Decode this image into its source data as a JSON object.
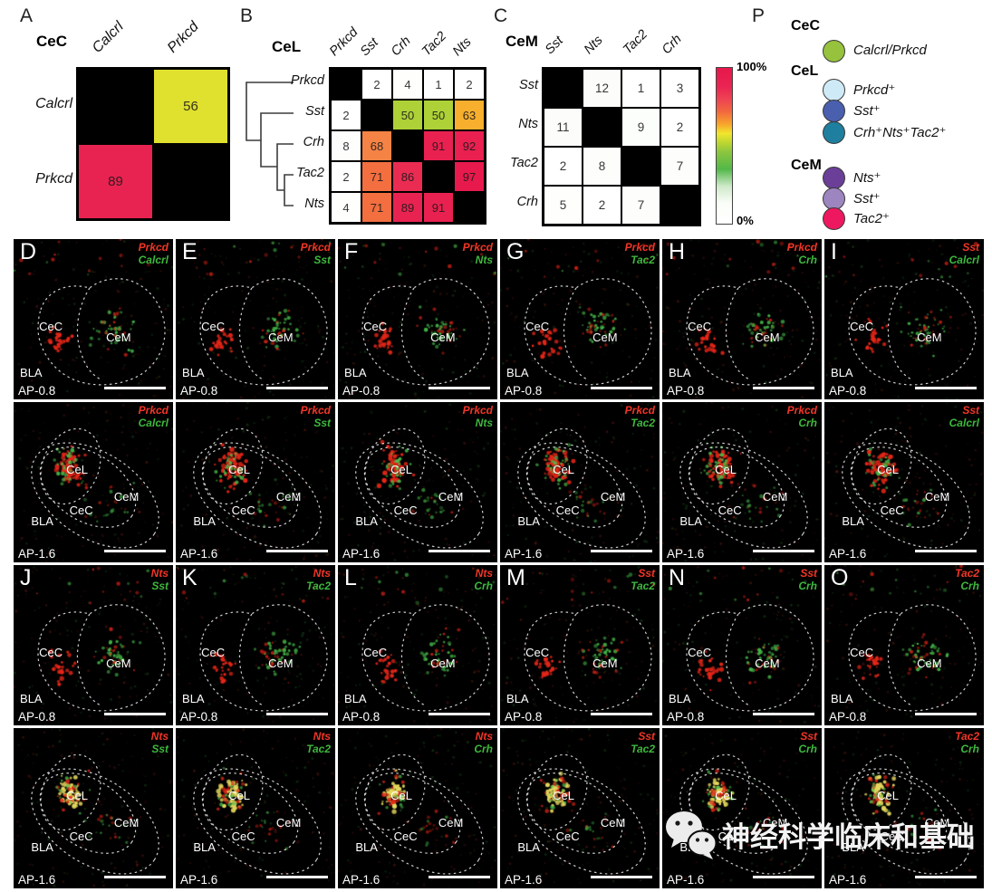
{
  "colorbar": {
    "top_label": "100%",
    "bottom_label": "0%"
  },
  "legend": {
    "letter": "P",
    "groups": [
      {
        "title": "CeC",
        "items": [
          {
            "color": "#96c23d",
            "label": "Calcrl/Prkcd"
          }
        ]
      },
      {
        "title": "CeL",
        "items": [
          {
            "color": "#cfeaf7",
            "label": "Prkcd⁺"
          },
          {
            "color": "#4a5fae",
            "label": "Sst⁺"
          },
          {
            "color": "#1e7f9e",
            "label": "Crh⁺Nts⁺Tac2⁺"
          }
        ]
      },
      {
        "title": "CeM",
        "items": [
          {
            "color": "#6b3f98",
            "label": "Nts⁺"
          },
          {
            "color": "#9d85c0",
            "label": "Sst⁺"
          },
          {
            "color": "#ee1860",
            "label": "Tac2⁺"
          }
        ]
      }
    ]
  },
  "chart_data": [
    {
      "type": "heatmap",
      "panel": "A",
      "title": "CeC",
      "cols": [
        "Calcrl",
        "Prkcd"
      ],
      "rows": [
        "Calcrl",
        "Prkcd"
      ],
      "values": [
        [
          null,
          56
        ],
        [
          89,
          null
        ]
      ],
      "scale": {
        "min": 0,
        "max": 100,
        "unit": "%"
      },
      "legend_position": "right",
      "note": "diagonal cells solid black; values = % marker overlap"
    },
    {
      "type": "heatmap",
      "panel": "B",
      "title": "CeL",
      "cols": [
        "Prkcd",
        "Sst",
        "Crh",
        "Tac2",
        "Nts"
      ],
      "rows": [
        "Prkcd",
        "Sst",
        "Crh",
        "Tac2",
        "Nts"
      ],
      "values": [
        [
          null,
          2,
          4,
          1,
          2
        ],
        [
          2,
          null,
          50,
          50,
          63
        ],
        [
          8,
          68,
          null,
          91,
          92
        ],
        [
          2,
          71,
          86,
          null,
          97
        ],
        [
          4,
          71,
          89,
          91,
          null
        ]
      ],
      "scale": {
        "min": 0,
        "max": 100,
        "unit": "%"
      },
      "dendrogram": "((Prkcd),(Sst,(Crh,(Tac2,Nts))))"
    },
    {
      "type": "heatmap",
      "panel": "C",
      "title": "CeM",
      "cols": [
        "Sst",
        "Nts",
        "Tac2",
        "Crh"
      ],
      "rows": [
        "Sst",
        "Nts",
        "Tac2",
        "Crh"
      ],
      "values": [
        [
          null,
          12,
          1,
          3
        ],
        [
          11,
          null,
          9,
          2
        ],
        [
          2,
          8,
          null,
          7
        ],
        [
          5,
          2,
          7,
          null
        ]
      ],
      "scale": {
        "min": 0,
        "max": 100,
        "unit": "%"
      }
    }
  ],
  "microscopy": {
    "rows": [
      {
        "ap": "AP-0.8",
        "regions": [
          "CeC",
          "CeM",
          "BLA"
        ],
        "panels": [
          {
            "letter": "D",
            "red": "Prkcd",
            "green": "Calcrl"
          },
          {
            "letter": "E",
            "red": "Prkcd",
            "green": "Sst"
          },
          {
            "letter": "F",
            "red": "Prkcd",
            "green": "Nts"
          },
          {
            "letter": "G",
            "red": "Prkcd",
            "green": "Tac2"
          },
          {
            "letter": "H",
            "red": "Prkcd",
            "green": "Crh"
          },
          {
            "letter": "I",
            "red": "Sst",
            "green": "Calcrl"
          }
        ]
      },
      {
        "ap": "AP-1.6",
        "regions": [
          "CeL",
          "CeM",
          "CeC",
          "BLA"
        ],
        "panels": [
          {
            "red": "Prkcd",
            "green": "Calcrl"
          },
          {
            "red": "Prkcd",
            "green": "Sst"
          },
          {
            "red": "Prkcd",
            "green": "Nts"
          },
          {
            "red": "Prkcd",
            "green": "Tac2"
          },
          {
            "red": "Prkcd",
            "green": "Crh"
          },
          {
            "red": "Sst",
            "green": "Calcrl"
          }
        ]
      },
      {
        "ap": "AP-0.8",
        "regions": [
          "CeC",
          "CeM",
          "BLA"
        ],
        "panels": [
          {
            "letter": "J",
            "red": "Nts",
            "green": "Sst"
          },
          {
            "letter": "K",
            "red": "Nts",
            "green": "Tac2"
          },
          {
            "letter": "L",
            "red": "Nts",
            "green": "Crh"
          },
          {
            "letter": "M",
            "red": "Sst",
            "green": "Tac2"
          },
          {
            "letter": "N",
            "red": "Sst",
            "green": "Crh"
          },
          {
            "letter": "O",
            "red": "Tac2",
            "green": "Crh"
          }
        ]
      },
      {
        "ap": "AP-1.6",
        "regions": [
          "CeL",
          "CeM",
          "CeC",
          "BLA"
        ],
        "panels": [
          {
            "red": "Nts",
            "green": "Sst"
          },
          {
            "red": "Nts",
            "green": "Tac2"
          },
          {
            "red": "Nts",
            "green": "Crh"
          },
          {
            "red": "Sst",
            "green": "Tac2"
          },
          {
            "red": "Sst",
            "green": "Crh"
          },
          {
            "red": "Tac2",
            "green": "Crh"
          }
        ]
      }
    ]
  },
  "channel_colors": {
    "red": "#f23527",
    "green": "#3db83d"
  },
  "watermark": {
    "text": "神经科学临床和基础"
  }
}
